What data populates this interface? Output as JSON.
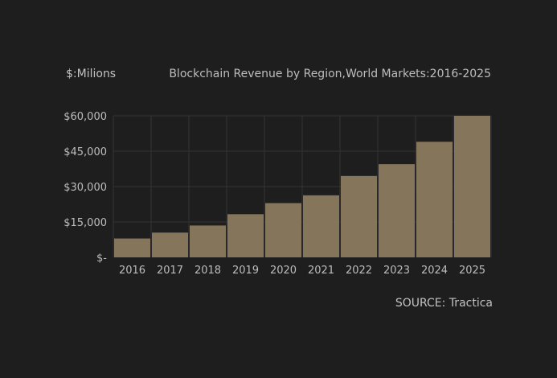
{
  "header": {
    "units_label": "$:Milions",
    "title": "Blockchain Revenue by Region,World Markets:2016-2025"
  },
  "footer": {
    "source": "SOURCE: Tractica"
  },
  "colors": {
    "background": "#1e1e1e",
    "bar": "#85755a",
    "grid": "#343434",
    "text": "#bdbdbd"
  },
  "chart_data": {
    "type": "bar",
    "title": "Blockchain Revenue by Region,World Markets:2016-2025",
    "ylabel": "$:Milions",
    "xlabel": "",
    "categories": [
      "2016",
      "2017",
      "2018",
      "2019",
      "2020",
      "2021",
      "2022",
      "2023",
      "2024",
      "2025"
    ],
    "values": [
      8000,
      10500,
      13500,
      18300,
      23000,
      26300,
      34500,
      39500,
      49000,
      60500
    ],
    "ylim": [
      0,
      60000
    ],
    "y_ticks": [
      0,
      15000,
      30000,
      45000,
      60000
    ],
    "y_tick_labels": [
      "$-",
      "$15,000",
      "$30,000",
      "$45,000",
      "$60,000"
    ],
    "grid": true,
    "legend": "none"
  }
}
